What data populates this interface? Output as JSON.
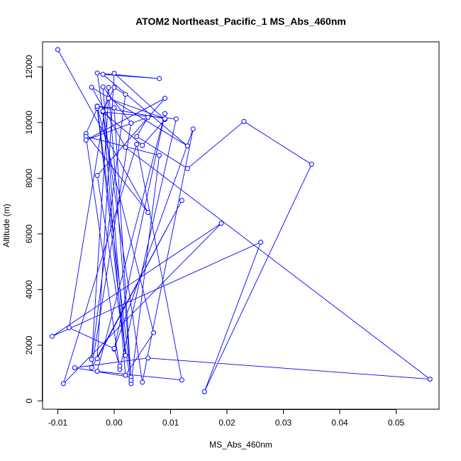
{
  "chart_data": {
    "type": "scatter",
    "title": "ATOM2 Northeast_Pacific_1 MS_Abs_460nm",
    "xlabel": "MS_Abs_460nm",
    "ylabel": "Altitude (m)",
    "xlim": [
      -0.0127,
      0.0576
    ],
    "ylim": [
      -300,
      12900
    ],
    "x_ticks": [
      -0.01,
      0.0,
      0.01,
      0.02,
      0.03,
      0.04,
      0.05
    ],
    "x_tick_labels": [
      "-0.01",
      "0.00",
      "0.01",
      "0.02",
      "0.03",
      "0.04",
      "0.05"
    ],
    "y_ticks": [
      0,
      2000,
      4000,
      6000,
      8000,
      10000,
      12000
    ],
    "y_tick_labels": [
      "0",
      "2000",
      "4000",
      "6000",
      "8000",
      "10000",
      "12000"
    ],
    "grid": false,
    "legend": "none",
    "series_color": "#0000ff",
    "marker": "open-circle",
    "line": "connected-in-order",
    "x": [
      -0.01,
      0.006,
      -0.005,
      -0.003,
      0.002,
      -0.002,
      0.003,
      -0.004,
      0.012,
      -0.003,
      0.0,
      0.009,
      0.005,
      -0.002,
      0.011,
      0.001,
      -0.005,
      0.008,
      0.003,
      -0.003,
      0.009,
      -0.005,
      0.006,
      0.004,
      0.013,
      0.023,
      0.035,
      0.016,
      0.026,
      -0.011,
      0.019,
      -0.009,
      0.004,
      0.012,
      -0.003,
      0.009,
      0.0,
      0.014,
      0.005,
      -0.003,
      0.008,
      -0.002,
      0.013,
      -0.004,
      0.002,
      0.056,
      0.006,
      -0.007,
      0.003,
      -0.003,
      0.007,
      0.002,
      -0.002,
      0.0,
      0.002,
      -0.004,
      -0.001,
      0.009,
      -0.003,
      0.0,
      0.003,
      -0.001,
      -0.008,
      0.0,
      0.001
    ],
    "y": [
      12620,
      6770,
      9600,
      10510,
      1630,
      11280,
      9980,
      1190,
      7200,
      1520,
      11770,
      10110,
      9180,
      10380,
      10130,
      1130,
      9500,
      8820,
      620,
      8100,
      10870,
      9370,
      10190,
      9500,
      8350,
      10040,
      8500,
      330,
      5700,
      2320,
      6380,
      620,
      9220,
      750,
      1060,
      10320,
      1860,
      9770,
      670,
      11780,
      11580,
      11730,
      9160,
      11270,
      9110,
      780,
      1540,
      1190,
      850,
      10590,
      2450,
      920,
      10410,
      11260,
      11010,
      1490,
      10870,
      10140,
      10580,
      10530,
      740,
      11260,
      2630,
      1880,
      1250
    ]
  }
}
